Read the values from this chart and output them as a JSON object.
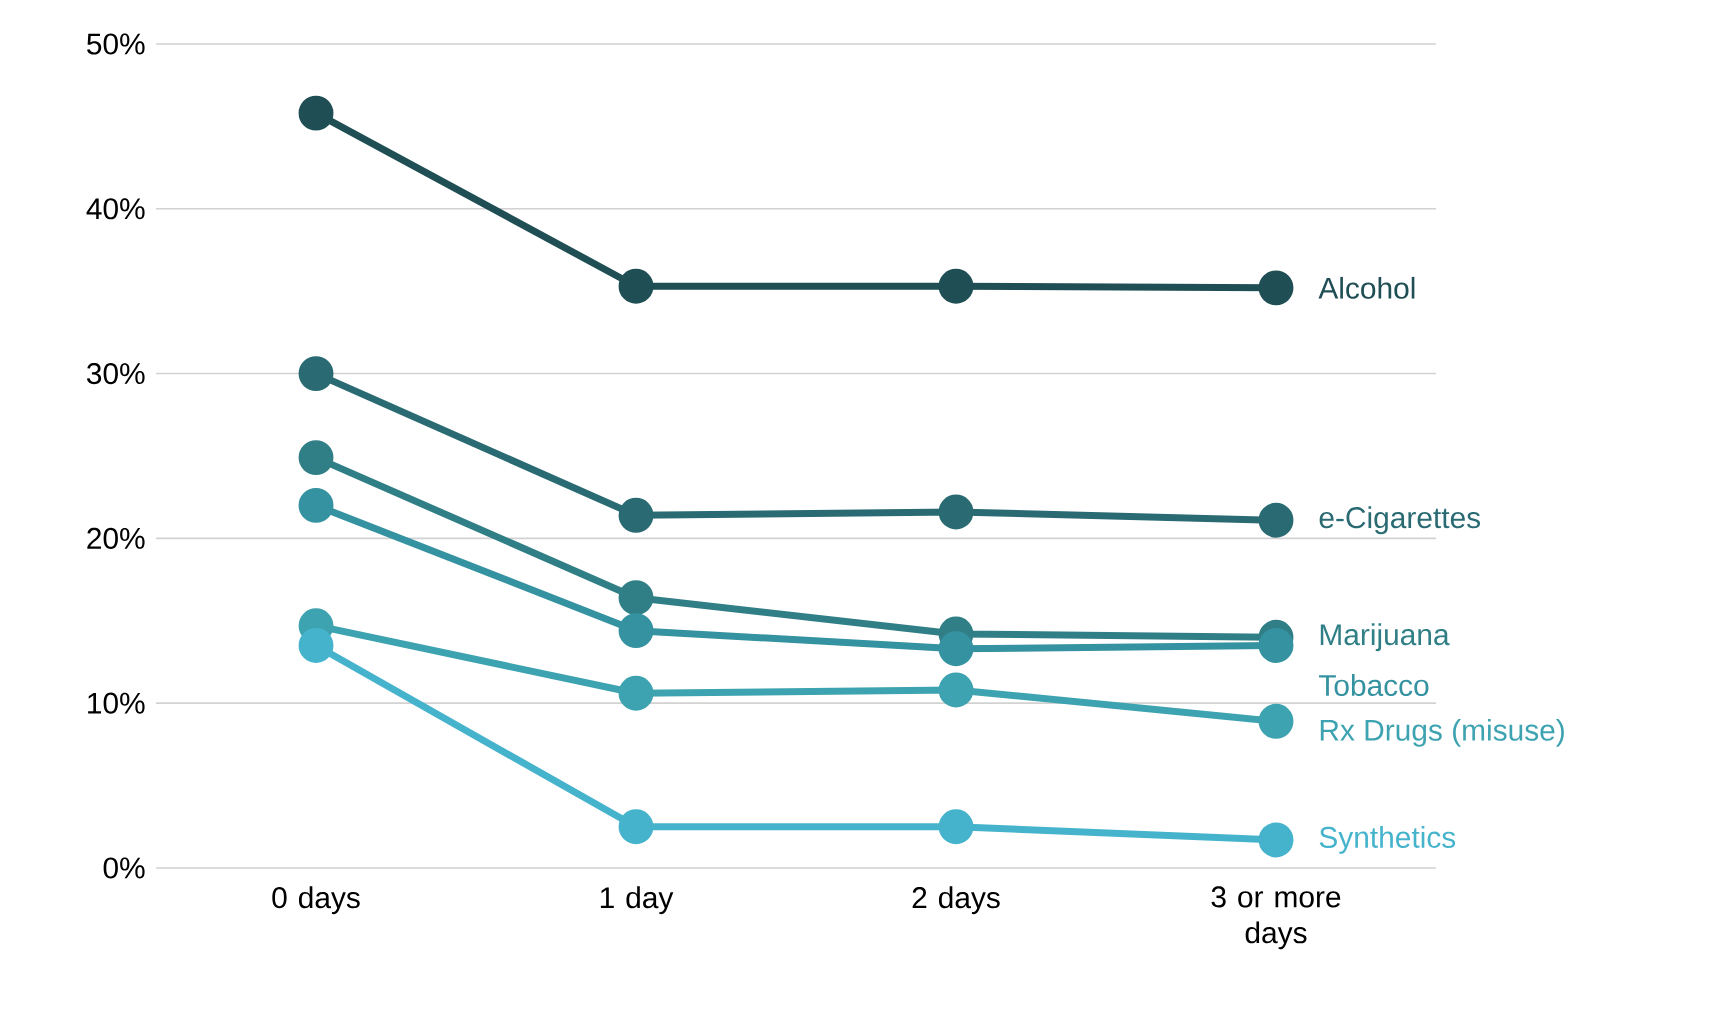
{
  "chart_data": {
    "type": "line",
    "categories": [
      "0 days",
      "1 day",
      "2 days",
      "3 or more days"
    ],
    "series": [
      {
        "name": "Alcohol",
        "color": "#1f4e54",
        "values": [
          45.8,
          35.3,
          35.3,
          35.2
        ]
      },
      {
        "name": "e-Cigarettes",
        "color": "#2a6b73",
        "values": [
          30.0,
          21.4,
          21.6,
          21.1
        ]
      },
      {
        "name": "Marijuana",
        "color": "#317f86",
        "values": [
          24.9,
          16.4,
          14.2,
          14.0
        ]
      },
      {
        "name": "Tobacco",
        "color": "#3592a0",
        "values": [
          22.0,
          14.4,
          13.3,
          13.5
        ]
      },
      {
        "name": "Rx Drugs (misuse)",
        "color": "#3ea3b0",
        "values": [
          14.7,
          10.6,
          10.8,
          8.9
        ]
      },
      {
        "name": "Synthetics",
        "color": "#46b3cc",
        "values": [
          13.5,
          2.5,
          2.5,
          1.7
        ]
      }
    ],
    "ylim": [
      0,
      50
    ],
    "yticks": [
      {
        "value": 0,
        "label": "0%"
      },
      {
        "value": 10,
        "label": "10%"
      },
      {
        "value": 20,
        "label": "20%"
      },
      {
        "value": 30,
        "label": "30%"
      },
      {
        "value": 40,
        "label": "40%"
      },
      {
        "value": 50,
        "label": "50%"
      }
    ],
    "grid": "y",
    "marker": "circle",
    "line_style": "solid"
  }
}
